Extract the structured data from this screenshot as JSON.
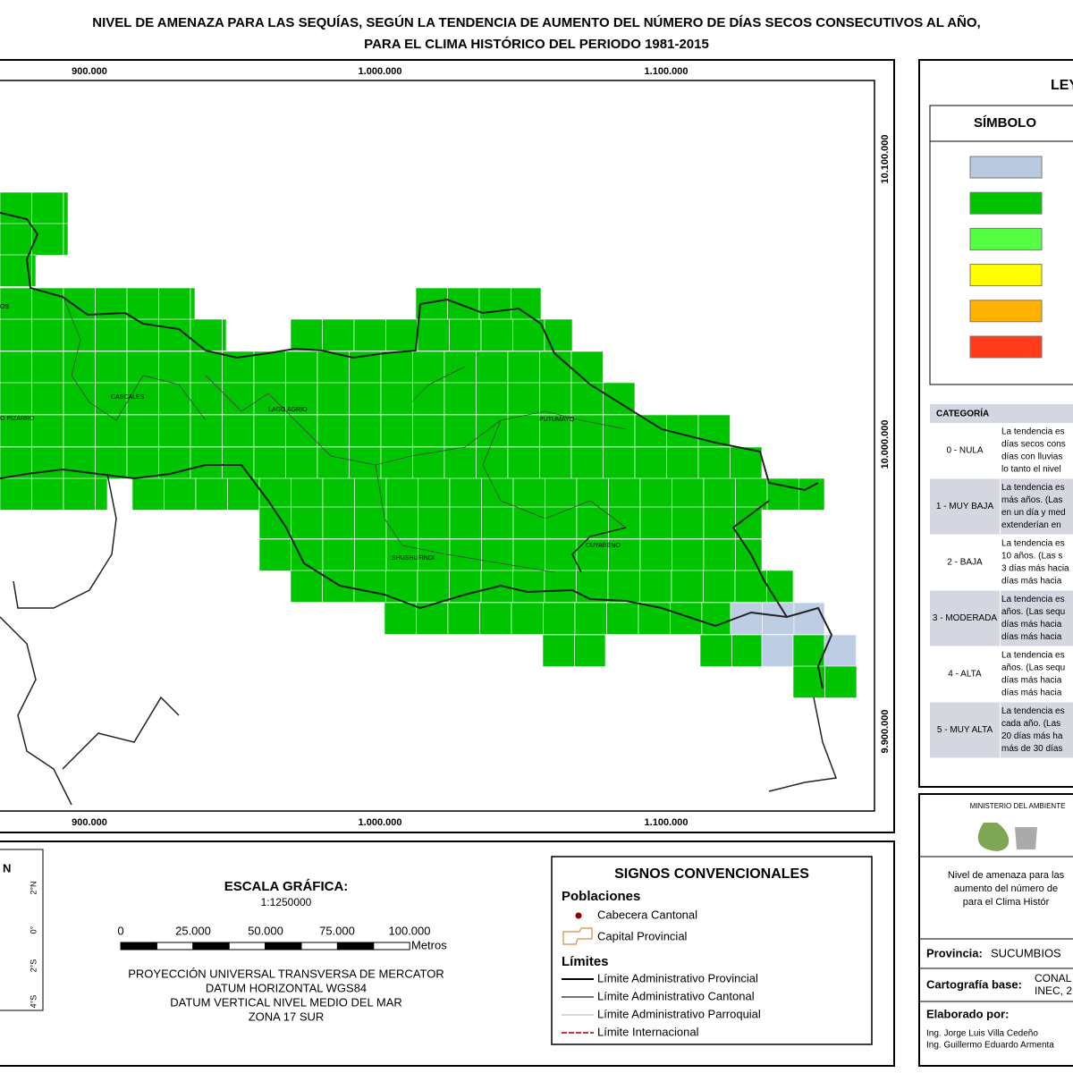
{
  "title": [
    "NIVEL DE AMENAZA PARA LAS SEQUÍAS, SEGÚN LA TENDENCIA DE AUMENTO DEL NÚMERO DE DÍAS SECOS CONSECUTIVOS AL AÑO,",
    "PARA EL CLIMA HISTÓRICO DEL PERIODO 1981-2015"
  ],
  "map": {
    "x_coords": [
      "900.000",
      "1.000.000",
      "1.100.000"
    ],
    "y_coords": [
      "10.100.000",
      "10.000.000",
      "9.900.000"
    ],
    "places": [
      "OS",
      "CASCALES",
      "LAGO AGRIO",
      "O PIZARRO",
      "PUTUMAYO",
      "SHUSHUFINDI",
      "CUYABENO"
    ],
    "cell_color": "#00c400",
    "cell_color_low": "#bccde4"
  },
  "legend": {
    "title": "LEYENDA",
    "symbol_header": "SÍMBOLO",
    "symbol_colors": [
      "#b9c9e0",
      "#00c400",
      "#55ff44",
      "#ffff00",
      "#ffb300",
      "#ff3b1a"
    ],
    "table": {
      "header": "CATEGORÍA",
      "rows": [
        {
          "category": "0 - NULA",
          "text": [
            "La tendencia es",
            "días secos cons",
            "días con lluvias",
            "lo tanto el nivel"
          ]
        },
        {
          "category": "1 - MUY BAJA",
          "text": [
            "La tendencia es",
            "más años. (Las",
            "en un día y med",
            "extenderían en"
          ]
        },
        {
          "category": "2 - BAJA",
          "text": [
            "La tendencia es",
            "10 años. (Las s",
            "3 días más hacia",
            "días más hacia"
          ]
        },
        {
          "category": "3 - MODERADA",
          "text": [
            "La tendencia es",
            "años. (Las sequ",
            "días más hacia",
            "días más hacia"
          ]
        },
        {
          "category": "4 - ALTA",
          "text": [
            "La tendencia es",
            "años. (Las sequ",
            "días más hacia",
            "días más hacia"
          ]
        },
        {
          "category": "5 - MUY ALTA",
          "text": [
            "La tendencia es",
            "cada año. (Las",
            "20 días más ha",
            "más de 30 días"
          ]
        }
      ]
    }
  },
  "inset": {
    "title": "N",
    "lat": [
      "2°N",
      "0°",
      "2°S",
      "4°S"
    ]
  },
  "scale": {
    "title": "ESCALA GRÁFICA:",
    "ratio": "1:1250000",
    "ticks": [
      "0",
      "25.000",
      "50.000",
      "75.000",
      "100.000"
    ],
    "unit": "Metros",
    "projection": [
      "PROYECCIÓN UNIVERSAL TRANSVERSA DE MERCATOR",
      "DATUM HORIZONTAL WGS84",
      "DATUM VERTICAL NIVEL MEDIO DEL MAR",
      "ZONA 17 SUR"
    ]
  },
  "signs": {
    "title": "SIGNOS CONVENCIONALES",
    "populations": "Poblaciones",
    "cabecera": "Cabecera Cantonal",
    "capital": "Capital Provincial",
    "limits": "Límites",
    "limit_items": [
      "Límite Administrativo Provincial",
      "Límite Administrativo Cantonal",
      "Límite Administrativo Parroquial",
      "Límite Internacional"
    ]
  },
  "info": {
    "ministry": "MINISTERIO DEL AMBIENTE",
    "description": [
      "Nivel de amenaza para las",
      "aumento del número de",
      "para el Clima Histór"
    ],
    "province_label": "Provincia:",
    "province": "SUCUMBIOS",
    "base_label": "Cartografía base:",
    "base": [
      "CONAL",
      "INEC, 2"
    ],
    "made_by": "Elaborado por:",
    "authors": [
      "Ing. Jorge Luis Villa Cedeño",
      "Ing. Guillermo Eduardo Armenta"
    ]
  }
}
